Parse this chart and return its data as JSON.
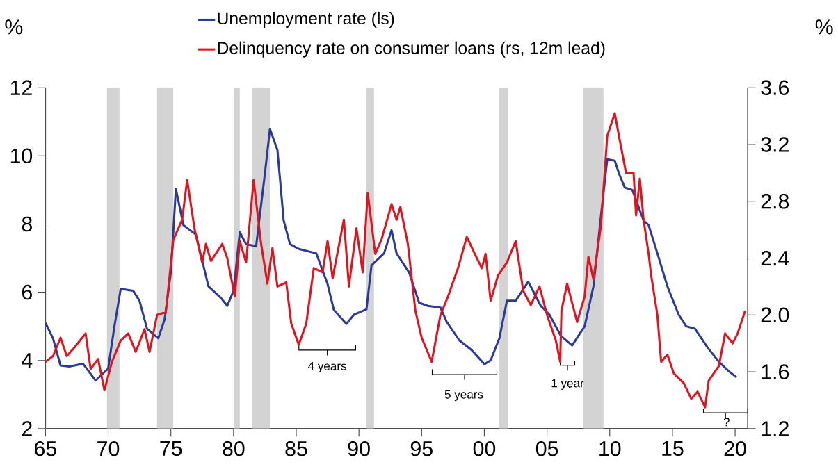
{
  "chart_data": {
    "type": "line",
    "ylabel": "%",
    "y2label": "%",
    "xlim": [
      1965,
      2021
    ],
    "xticks": [
      {
        "value": 1965,
        "label": "65"
      },
      {
        "value": 1970,
        "label": "70"
      },
      {
        "value": 1975,
        "label": "75"
      },
      {
        "value": 1980,
        "label": "80"
      },
      {
        "value": 1985,
        "label": "85"
      },
      {
        "value": 1990,
        "label": "90"
      },
      {
        "value": 1995,
        "label": "95"
      },
      {
        "value": 2000,
        "label": "00"
      },
      {
        "value": 2005,
        "label": "05"
      },
      {
        "value": 2010,
        "label": "10"
      },
      {
        "value": 2015,
        "label": "15"
      },
      {
        "value": 2020,
        "label": "20"
      }
    ],
    "ylim": [
      2,
      12
    ],
    "yticks": [
      2,
      4,
      6,
      8,
      10,
      12
    ],
    "y2lim": [
      1.2,
      3.6
    ],
    "y2ticks": [
      1.2,
      1.6,
      {
        "value": 2.0,
        "label": "2.0"
      },
      2.4,
      2.8,
      3.2,
      3.6
    ],
    "series": [
      {
        "name": "Unemployment rate (ls)",
        "color": "#2b3a98",
        "x": [
          1965,
          1965.6,
          1966.2,
          1966.9,
          1968,
          1969,
          1970,
          1970.5,
          1971,
          1972,
          1972.5,
          1973.1,
          1974,
          1974.5,
          1975,
          1975.4,
          1976,
          1977,
          1978,
          1979,
          1979.5,
          1980,
          1980.5,
          1981,
          1981.8,
          1982.5,
          1982.9,
          1983.5,
          1984,
          1984.5,
          1985.2,
          1986.6,
          1987.5,
          1988,
          1989,
          1989.6,
          1990.6,
          1991,
          1992,
          1992.6,
          1993,
          1994,
          1994.8,
          1995.5,
          1996.5,
          1997,
          1998,
          1999,
          2000,
          2000.5,
          2001.2,
          2001.8,
          2002.5,
          2003.5,
          2004.5,
          2005.2,
          2006.1,
          2007,
          2008,
          2008.7,
          2009.3,
          2009.8,
          2010.4,
          2010.8,
          2011.2,
          2011.8,
          2012.7,
          2013.1,
          2013.8,
          2014.6,
          2015.5,
          2016.1,
          2016.8,
          2017.8,
          2018.7,
          2019.5,
          2020.1
        ],
        "values": [
          5.1,
          4.65,
          3.85,
          3.82,
          3.9,
          3.41,
          3.76,
          5.0,
          6.1,
          6.04,
          5.75,
          4.93,
          4.65,
          5.2,
          6.58,
          9.03,
          7.97,
          7.69,
          6.17,
          5.83,
          5.6,
          6.04,
          7.76,
          7.41,
          7.35,
          9.48,
          10.79,
          10.17,
          8.1,
          7.41,
          7.27,
          7.14,
          6.24,
          5.48,
          5.07,
          5.34,
          5.5,
          6.79,
          7.14,
          7.82,
          7.14,
          6.58,
          5.69,
          5.6,
          5.55,
          5.13,
          4.59,
          4.3,
          3.89,
          4.0,
          4.65,
          5.75,
          5.75,
          6.31,
          5.6,
          5.34,
          4.72,
          4.44,
          5.0,
          6.17,
          8.24,
          9.9,
          9.86,
          9.42,
          9.07,
          9.0,
          8.1,
          7.97,
          7.14,
          6.17,
          5.34,
          5.0,
          4.93,
          4.38,
          3.96,
          3.68,
          3.51
        ]
      },
      {
        "name": "Delinquency rate on consumer loans (rs, 12m lead)",
        "color": "#e3121d",
        "axis": "y2",
        "x": [
          1965,
          1965.6,
          1966.2,
          1966.7,
          1967.3,
          1968.2,
          1968.6,
          1969.2,
          1969.7,
          1970.3,
          1971,
          1971.6,
          1972.2,
          1972.9,
          1973.3,
          1973.9,
          1974.6,
          1975.2,
          1975.9,
          1976.3,
          1976.9,
          1977.5,
          1977.8,
          1978.2,
          1979.1,
          1979.5,
          1980.1,
          1980.5,
          1981,
          1981.6,
          1982.2,
          1982.7,
          1983.1,
          1983.5,
          1984.2,
          1984.6,
          1985.2,
          1985.8,
          1986.4,
          1987.1,
          1987.5,
          1987.9,
          1988.8,
          1989.2,
          1989.8,
          1990.3,
          1990.7,
          1991.3,
          1991.8,
          1992.6,
          1993,
          1993.3,
          1993.9,
          1994.5,
          1995,
          1995.8,
          1996.5,
          1997.1,
          1997.9,
          1998.6,
          1999.4,
          1999.8,
          2000.1,
          2000.5,
          2001.1,
          2001.8,
          2002.5,
          2003.1,
          2003.7,
          2004.4,
          2005,
          2005.7,
          2006.05,
          2006.15,
          2006.6,
          2007.4,
          2008,
          2008.3,
          2008.7,
          2009.3,
          2009.8,
          2010.4,
          2010.8,
          2011.3,
          2011.9,
          2012.1,
          2012.4,
          2012.7,
          2013.1,
          2013.3,
          2013.8,
          2014.1,
          2014.6,
          2015.1,
          2015.9,
          2016.5,
          2017,
          2017.6,
          2017.9,
          2018.7,
          2019.2,
          2019.8,
          2020.2,
          2020.8
        ],
        "values": [
          1.67,
          1.71,
          1.84,
          1.71,
          1.77,
          1.87,
          1.62,
          1.69,
          1.47,
          1.67,
          1.82,
          1.87,
          1.74,
          1.9,
          1.74,
          2.0,
          2.02,
          2.53,
          2.67,
          2.95,
          2.6,
          2.37,
          2.5,
          2.38,
          2.5,
          2.4,
          2.13,
          2.52,
          2.37,
          2.95,
          2.5,
          2.22,
          2.47,
          2.2,
          2.23,
          1.94,
          1.79,
          1.94,
          2.33,
          2.3,
          2.52,
          2.26,
          2.67,
          2.2,
          2.61,
          2.3,
          2.86,
          2.43,
          2.53,
          2.78,
          2.67,
          2.76,
          2.5,
          2.03,
          1.84,
          1.67,
          2.0,
          2.13,
          2.33,
          2.55,
          2.4,
          2.33,
          2.43,
          2.1,
          2.28,
          2.37,
          2.52,
          2.17,
          2.07,
          2.2,
          2.0,
          1.82,
          1.67,
          2.03,
          2.22,
          1.95,
          2.13,
          2.41,
          2.25,
          2.63,
          3.26,
          3.42,
          3.23,
          3.0,
          3.0,
          2.7,
          2.96,
          2.67,
          2.43,
          2.28,
          2.0,
          1.67,
          1.72,
          1.59,
          1.52,
          1.41,
          1.46,
          1.35,
          1.54,
          1.64,
          1.87,
          1.8,
          1.87,
          2.03
        ]
      }
    ],
    "bands": [
      {
        "axis": "x",
        "from": 1969.9,
        "to": 1970.9,
        "color": "#d3d3d3"
      },
      {
        "axis": "x",
        "from": 1973.9,
        "to": 1975.2,
        "color": "#d3d3d3"
      },
      {
        "axis": "x",
        "from": 1980.0,
        "to": 1980.5,
        "color": "#d3d3d3"
      },
      {
        "axis": "x",
        "from": 1981.5,
        "to": 1982.9,
        "color": "#d3d3d3"
      },
      {
        "axis": "x",
        "from": 1990.6,
        "to": 1991.2,
        "color": "#d3d3d3"
      },
      {
        "axis": "x",
        "from": 2001.2,
        "to": 2001.9,
        "color": "#d3d3d3"
      },
      {
        "axis": "x",
        "from": 2007.9,
        "to": 2009.5,
        "color": "#d3d3d3"
      }
    ],
    "annotations": [
      "4 years",
      "5 years",
      "1 year",
      "?"
    ],
    "grid": false,
    "legend": "top"
  }
}
